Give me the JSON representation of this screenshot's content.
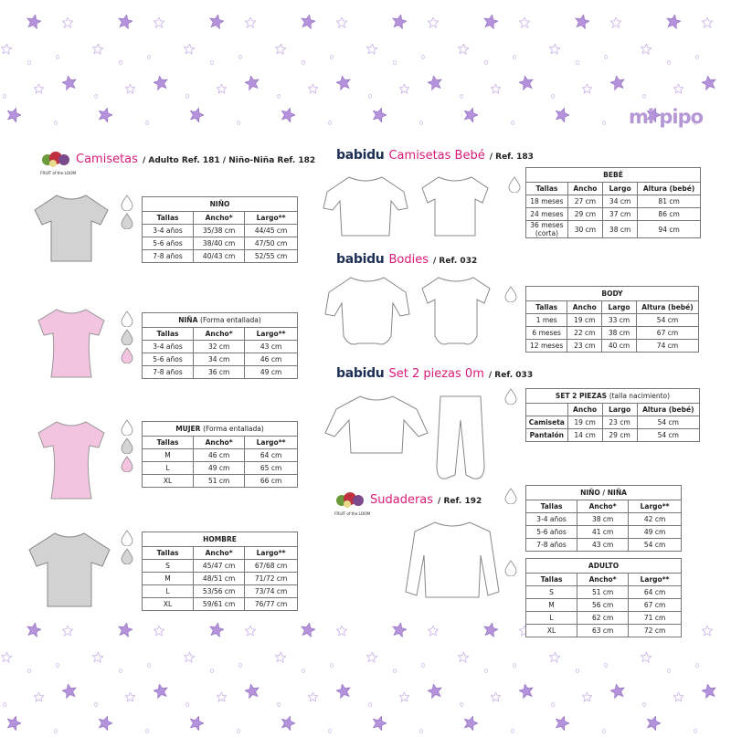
{
  "brand_logo": "mi pipo",
  "colors": {
    "star_fill": "#b593dc",
    "star_outline": "#c8b3e6",
    "product_title": "#d81b79",
    "swatch_grey": "#d4d4d4",
    "swatch_pink": "#f2c4e0",
    "white": "#ffffff"
  },
  "sections": {
    "camisetas": {
      "brand": "FRUIT of the LOOM",
      "title": "Camisetas",
      "ref": "/ Adulto Ref. 181 / Niño-Niña Ref. 182"
    },
    "bebe": {
      "brand": "babidu",
      "title": "Camisetas Bebé",
      "ref": "/ Ref. 183"
    },
    "bodies": {
      "brand": "babidu",
      "title": "Bodies",
      "ref": "/ Ref. 032"
    },
    "set": {
      "brand": "babidu",
      "title": "Set 2 piezas 0m",
      "ref": "/ Ref. 033"
    },
    "sudaderas": {
      "brand": "FRUIT of the LOOM",
      "title": "Sudaderas",
      "ref": "/ Ref. 192"
    }
  },
  "tables": {
    "nino": {
      "title": "NIÑO",
      "sub": "",
      "header": [
        "Tallas",
        "Ancho*",
        "Largo**"
      ],
      "rows": [
        [
          "3-4 años",
          "35/38 cm",
          "44/45 cm"
        ],
        [
          "5-6 años",
          "38/40 cm",
          "47/50 cm"
        ],
        [
          "7-8 años",
          "40/43 cm",
          "52/55 cm"
        ]
      ],
      "swatches": [
        "white",
        "grey"
      ]
    },
    "nina": {
      "title": "NIÑA",
      "sub": "(Forma entallada)",
      "header": [
        "Tallas",
        "Ancho*",
        "Largo**"
      ],
      "rows": [
        [
          "3-4 años",
          "32 cm",
          "43 cm"
        ],
        [
          "5-6 años",
          "34 cm",
          "46 cm"
        ],
        [
          "7-8 años",
          "36 cm",
          "49 cm"
        ]
      ],
      "swatches": [
        "white",
        "grey",
        "pink"
      ]
    },
    "mujer": {
      "title": "MUJER",
      "sub": "(Forma entallada)",
      "header": [
        "Tallas",
        "Ancho*",
        "Largo**"
      ],
      "rows": [
        [
          "M",
          "46 cm",
          "64 cm"
        ],
        [
          "L",
          "49 cm",
          "65 cm"
        ],
        [
          "XL",
          "51 cm",
          "66 cm"
        ]
      ],
      "swatches": [
        "white",
        "grey",
        "pink"
      ]
    },
    "hombre": {
      "title": "HOMBRE",
      "sub": "",
      "header": [
        "Tallas",
        "Ancho*",
        "Largo**"
      ],
      "rows": [
        [
          "S",
          "45/47 cm",
          "67/68 cm"
        ],
        [
          "M",
          "48/51 cm",
          "71/72 cm"
        ],
        [
          "L",
          "53/56 cm",
          "73/74 cm"
        ],
        [
          "XL",
          "59/61 cm",
          "76/77 cm"
        ]
      ],
      "swatches": [
        "white",
        "grey"
      ]
    },
    "bebe": {
      "title": "BEBÉ",
      "sub": "",
      "header": [
        "Tallas",
        "Ancho",
        "Largo",
        "Altura (bebé)"
      ],
      "rows": [
        [
          "18 meses",
          "27 cm",
          "34 cm",
          "81 cm"
        ],
        [
          "24 meses",
          "29 cm",
          "37 cm",
          "86 cm"
        ],
        [
          "36 meses (corta)",
          "30 cm",
          "38 cm",
          "94 cm"
        ]
      ],
      "swatches": [
        "white"
      ]
    },
    "body": {
      "title": "BODY",
      "sub": "",
      "header": [
        "Tallas",
        "Ancho",
        "Largo",
        "Altura (bebé)"
      ],
      "rows": [
        [
          "1 mes",
          "19 cm",
          "33 cm",
          "54 cm"
        ],
        [
          "6 meses",
          "22 cm",
          "38 cm",
          "67 cm"
        ],
        [
          "12 meses",
          "23 cm",
          "40 cm",
          "74 cm"
        ]
      ],
      "swatches": [
        "white"
      ]
    },
    "set": {
      "title": "SET 2 PIEZAS",
      "sub": "(talla nacimiento)",
      "header": [
        "",
        "Ancho",
        "Largo",
        "Altura (bebé)"
      ],
      "rows": [
        [
          "Camiseta",
          "19 cm",
          "23 cm",
          "54 cm"
        ],
        [
          "Pantalón",
          "14 cm",
          "29 cm",
          "54 cm"
        ]
      ],
      "swatches": [
        "white"
      ]
    },
    "sud_nino": {
      "title": "NIÑO / NIÑA",
      "sub": "",
      "header": [
        "Tallas",
        "Ancho*",
        "Largo**"
      ],
      "rows": [
        [
          "3-4 años",
          "38 cm",
          "42 cm"
        ],
        [
          "5-6 años",
          "41 cm",
          "49 cm"
        ],
        [
          "7-8 años",
          "43 cm",
          "54 cm"
        ]
      ],
      "swatches": [
        "white"
      ]
    },
    "sud_adulto": {
      "title": "ADULTO",
      "sub": "",
      "header": [
        "Tallas",
        "Ancho*",
        "Largo**"
      ],
      "rows": [
        [
          "S",
          "51 cm",
          "64 cm"
        ],
        [
          "M",
          "56 cm",
          "67 cm"
        ],
        [
          "L",
          "62 cm",
          "71 cm"
        ],
        [
          "XL",
          "63 cm",
          "72 cm"
        ]
      ],
      "swatches": [
        "white"
      ]
    }
  }
}
